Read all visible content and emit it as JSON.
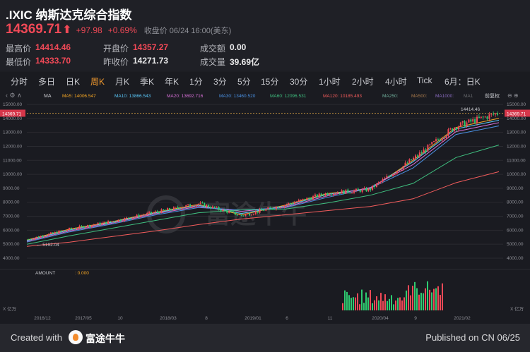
{
  "header": {
    "title": ".IXIC 纳斯达克综合指数",
    "price": "14369.71",
    "arrow": "⬆",
    "change": "+97.98",
    "change_pct": "+0.69%",
    "status": "收盘价  06/24 16:00(美东)",
    "stats": [
      {
        "label": "最高价",
        "value": "14414.46",
        "color": "red"
      },
      {
        "label": "开盘价",
        "value": "14357.27",
        "color": "red"
      },
      {
        "label": "成交额",
        "value": "0.00",
        "color": "white"
      },
      {
        "label": "最低价",
        "value": "14333.70",
        "color": "red"
      },
      {
        "label": "昨收价",
        "value": "14271.73",
        "color": "white"
      },
      {
        "label": "成交量",
        "value": "39.69亿",
        "color": "white"
      }
    ]
  },
  "tabs": [
    {
      "label": "分时"
    },
    {
      "label": "多日"
    },
    {
      "label": "日K"
    },
    {
      "label": "周K",
      "active": true
    },
    {
      "label": "月K"
    },
    {
      "label": "季K"
    },
    {
      "label": "年K"
    },
    {
      "label": "1分"
    },
    {
      "label": "3分"
    },
    {
      "label": "5分"
    },
    {
      "label": "15分"
    },
    {
      "label": "30分"
    },
    {
      "label": "1小时"
    },
    {
      "label": "2小时"
    },
    {
      "label": "4小时"
    },
    {
      "label": "Tick"
    },
    {
      "label": "6月：日K"
    }
  ],
  "toolbar": {
    "ma_label": "MA",
    "ma_items": [
      {
        "label": "MA5: 14006.547",
        "color": "#f5a623"
      },
      {
        "label": "MA10: 13866.543",
        "color": "#5ac8fa"
      },
      {
        "label": "MA20: 13692.716",
        "color": "#d670d6"
      },
      {
        "label": "MA30: 13460.520",
        "color": "#4a90e2"
      },
      {
        "label": "MA60: 12096.531",
        "color": "#3fbf7f"
      },
      {
        "label": "MA120: 10185.493",
        "color": "#f25c5c"
      },
      {
        "label": "MA250:",
        "color": "#6fae9b"
      },
      {
        "label": "MA500:",
        "color": "#a87a4c"
      },
      {
        "label": "MA1000:",
        "color": "#8a6bc0"
      },
      {
        "label": "MA1",
        "color": "#6a6b70"
      }
    ],
    "adjust_label": "前复权"
  },
  "watermark": "富途牛牛",
  "chart_data": {
    "type": "candlestick",
    "interval": "weekly",
    "ylim": [
      4000,
      15000
    ],
    "y_ticks": [
      "15000.00",
      "14000.00",
      "13000.00",
      "12000.00",
      "11000.00",
      "10000.00",
      "9000.00",
      "8000.00",
      "7000.00",
      "6000.00",
      "5000.00",
      "4000.00"
    ],
    "x_ticks": [
      "2016/12",
      "2017/05",
      "10",
      "2018/03",
      "8",
      "2019/01",
      "6",
      "11",
      "2020/04",
      "9",
      "2021/02"
    ],
    "x": [
      "2016/12",
      "2017/05",
      "2017/10",
      "2018/03",
      "2018/08",
      "2019/01",
      "2019/06",
      "2019/11",
      "2020/04",
      "2020/09",
      "2021/02",
      "2021/06"
    ],
    "close": [
      5350,
      6100,
      6650,
      7300,
      7900,
      7050,
      7800,
      8650,
      8900,
      11050,
      13400,
      14370
    ],
    "current_price_label": "14369.71",
    "high_annotation": "14414.46",
    "low_annotation": "5192.04",
    "ma_series": [
      {
        "name": "MA5",
        "values": [
          5300,
          6080,
          6620,
          7280,
          7850,
          7100,
          7780,
          8620,
          8950,
          11000,
          13350,
          14006
        ]
      },
      {
        "name": "MA10",
        "values": [
          5260,
          6020,
          6580,
          7240,
          7780,
          7200,
          7720,
          8560,
          9000,
          10900,
          13250,
          13866
        ]
      },
      {
        "name": "MA20",
        "values": [
          5200,
          5950,
          6520,
          7180,
          7700,
          7350,
          7650,
          8450,
          9050,
          10700,
          13050,
          13692
        ]
      },
      {
        "name": "MA30",
        "values": [
          5150,
          5880,
          6450,
          7100,
          7620,
          7450,
          7600,
          8350,
          9000,
          10450,
          12850,
          13460
        ]
      },
      {
        "name": "MA60",
        "values": [
          5000,
          5600,
          6150,
          6700,
          7250,
          7450,
          7500,
          7950,
          8500,
          9350,
          11200,
          12096
        ]
      },
      {
        "name": "MA120",
        "values": [
          4850,
          5150,
          5550,
          5950,
          6400,
          6800,
          7100,
          7400,
          7700,
          8250,
          9400,
          10185
        ]
      }
    ],
    "volume_panel": {
      "label": "AMOUNT",
      "value": "0.000",
      "unit": "X 亿万"
    }
  },
  "footer": {
    "created_with": "Created with",
    "brand": "富途牛牛",
    "published": "Published on CN 06/25"
  }
}
